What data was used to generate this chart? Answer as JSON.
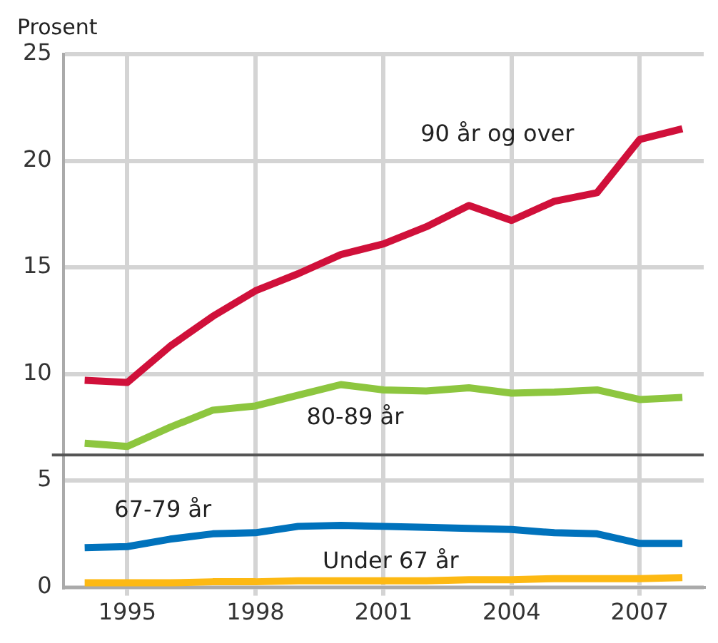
{
  "chart_data": {
    "type": "line",
    "ylabel": "Prosent",
    "x": [
      1994,
      1995,
      1996,
      1997,
      1998,
      1999,
      2000,
      2001,
      2002,
      2003,
      2004,
      2005,
      2006,
      2007,
      2008
    ],
    "series": [
      {
        "name": "90 år og over",
        "color": "#d0103a",
        "values": [
          9.7,
          9.6,
          11.3,
          12.7,
          13.9,
          14.7,
          15.6,
          16.1,
          16.9,
          17.9,
          17.2,
          18.1,
          18.5,
          21.0,
          21.5
        ]
      },
      {
        "name": "80-89 år",
        "color": "#8dc63f",
        "values": [
          6.75,
          6.6,
          7.5,
          8.3,
          8.5,
          9.0,
          9.5,
          9.25,
          9.2,
          9.35,
          9.1,
          9.15,
          9.25,
          8.8,
          8.9
        ]
      },
      {
        "name": "67-79 år",
        "color": "#0072bc",
        "values": [
          1.85,
          1.9,
          2.25,
          2.5,
          2.55,
          2.85,
          2.9,
          2.85,
          2.8,
          2.75,
          2.7,
          2.55,
          2.5,
          2.05,
          2.05
        ]
      },
      {
        "name": "Under 67 år",
        "color": "#fdb913",
        "values": [
          0.2,
          0.2,
          0.2,
          0.25,
          0.25,
          0.3,
          0.3,
          0.3,
          0.3,
          0.35,
          0.35,
          0.4,
          0.4,
          0.4,
          0.45
        ]
      }
    ],
    "xlim": [
      1993.5,
      2008.5
    ],
    "xticks": [
      1995,
      1998,
      2001,
      2004,
      2007
    ],
    "ylim": [
      0,
      25
    ],
    "yticks": [
      0,
      5,
      10,
      15,
      20,
      25
    ],
    "ref_lines": [
      {
        "axis": "y",
        "value": 6.2,
        "color": "#555555"
      }
    ],
    "grid": true,
    "legend": false,
    "marker": "none",
    "line_style": "solid"
  }
}
